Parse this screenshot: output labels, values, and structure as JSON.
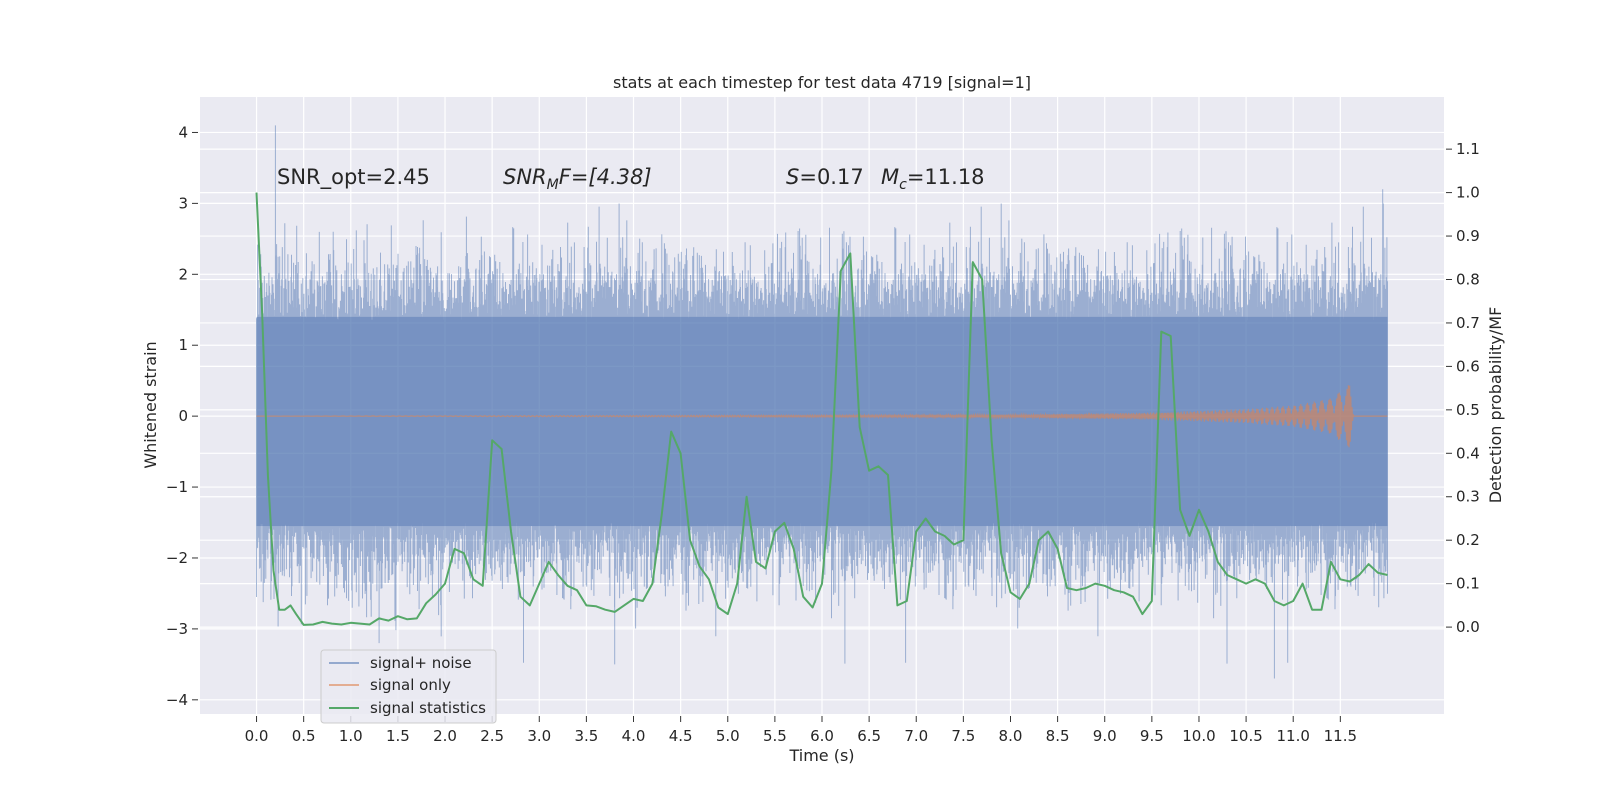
{
  "chart_data": {
    "type": "line",
    "title": "stats at each timestep for test data 4719 [signal=1]",
    "xlabel": "Time (s)",
    "ylabel_left": "Whitened strain",
    "ylabel_right": "Detection probability/MF",
    "xlim": [
      -0.6,
      12.6
    ],
    "ylim_left": [
      -4.2,
      4.5
    ],
    "ylim_right": [
      -0.2,
      1.22
    ],
    "x_ticks": [
      "0.0",
      "0.5",
      "1.0",
      "1.5",
      "2.0",
      "2.5",
      "3.0",
      "3.5",
      "4.0",
      "4.5",
      "5.0",
      "5.5",
      "6.0",
      "6.5",
      "7.0",
      "7.5",
      "8.0",
      "8.5",
      "9.0",
      "9.5",
      "10.0",
      "10.5",
      "11.0",
      "11.5"
    ],
    "y_ticks_left": [
      "4",
      "3",
      "2",
      "1",
      "0",
      "−1",
      "−2",
      "−3",
      "−4"
    ],
    "y_ticks_right": [
      "1.1",
      "1.0",
      "0.9",
      "0.8",
      "0.7",
      "0.6",
      "0.5",
      "0.4",
      "0.3",
      "0.2",
      "0.1",
      "0.0"
    ],
    "grid": true,
    "legend_position": "lower-left",
    "legend": [
      "signal+ noise",
      "signal only",
      "signal statistics"
    ],
    "annotations": {
      "snr_opt": "SNR_opt=2.45",
      "snr_mf_main": "SNR",
      "snr_mf_sub": "M",
      "snr_mf_rest": "F=[4.38]",
      "s_var": "S",
      "s_val": "=0.17",
      "mc_var": "M",
      "mc_sub": "c",
      "mc_val": "=11.18"
    },
    "colors": {
      "noise": "#4c72b0",
      "signal": "#dd8452",
      "stats": "#55a868",
      "background": "#eaeaf2",
      "grid": "#ffffff"
    },
    "series": [
      {
        "name": "signal+ noise",
        "axis": "left",
        "description_only": "dense whitened noise trace spanning 0.0 to 12.0 s",
        "x_range": [
          0.0,
          12.0
        ],
        "sample_points": [
          [
            0.0,
            1.1
          ],
          [
            0.2,
            4.1
          ],
          [
            1.3,
            -3.2
          ],
          [
            3.8,
            -3.5
          ],
          [
            10.8,
            -3.7
          ],
          [
            11.95,
            3.2
          ]
        ]
      },
      {
        "name": "signal only",
        "axis": "left",
        "x_range": [
          0.0,
          11.65
        ],
        "envelope": [
          [
            0.0,
            0.0
          ],
          [
            8.0,
            0.02
          ],
          [
            9.5,
            0.05
          ],
          [
            10.5,
            0.1
          ],
          [
            11.0,
            0.15
          ],
          [
            11.4,
            0.25
          ],
          [
            11.6,
            0.45
          ],
          [
            11.65,
            0.0
          ]
        ]
      },
      {
        "name": "signal statistics",
        "axis": "right",
        "x": [
          0.0,
          0.06,
          0.12,
          0.18,
          0.24,
          0.3,
          0.36,
          0.42,
          0.5,
          0.6,
          0.7,
          0.8,
          0.9,
          1.0,
          1.1,
          1.2,
          1.3,
          1.4,
          1.5,
          1.6,
          1.7,
          1.8,
          1.9,
          2.0,
          2.1,
          2.2,
          2.3,
          2.4,
          2.5,
          2.6,
          2.7,
          2.8,
          2.9,
          3.0,
          3.1,
          3.2,
          3.3,
          3.4,
          3.5,
          3.6,
          3.7,
          3.8,
          3.9,
          4.0,
          4.1,
          4.2,
          4.3,
          4.4,
          4.5,
          4.6,
          4.7,
          4.8,
          4.9,
          5.0,
          5.1,
          5.2,
          5.3,
          5.4,
          5.5,
          5.6,
          5.7,
          5.8,
          5.9,
          6.0,
          6.1,
          6.2,
          6.3,
          6.4,
          6.5,
          6.6,
          6.7,
          6.8,
          6.9,
          7.0,
          7.1,
          7.2,
          7.3,
          7.4,
          7.5,
          7.6,
          7.7,
          7.8,
          7.9,
          8.0,
          8.1,
          8.2,
          8.3,
          8.4,
          8.5,
          8.6,
          8.7,
          8.8,
          8.9,
          9.0,
          9.1,
          9.2,
          9.3,
          9.4,
          9.5,
          9.6,
          9.7,
          9.8,
          9.9,
          10.0,
          10.1,
          10.2,
          10.3,
          10.4,
          10.5,
          10.6,
          10.7,
          10.8,
          10.9,
          11.0,
          11.1,
          11.2,
          11.3,
          11.4,
          11.5,
          11.6,
          11.7,
          11.8,
          11.9,
          12.0
        ],
        "values": [
          1.0,
          0.72,
          0.35,
          0.13,
          0.04,
          0.04,
          0.05,
          0.03,
          0.005,
          0.006,
          0.012,
          0.008,
          0.006,
          0.01,
          0.008,
          0.006,
          0.02,
          0.015,
          0.025,
          0.018,
          0.02,
          0.055,
          0.075,
          0.1,
          0.18,
          0.17,
          0.11,
          0.095,
          0.43,
          0.41,
          0.22,
          0.07,
          0.05,
          0.1,
          0.15,
          0.12,
          0.095,
          0.085,
          0.05,
          0.048,
          0.04,
          0.035,
          0.05,
          0.065,
          0.06,
          0.1,
          0.26,
          0.45,
          0.4,
          0.2,
          0.14,
          0.11,
          0.045,
          0.03,
          0.1,
          0.3,
          0.15,
          0.135,
          0.22,
          0.24,
          0.18,
          0.07,
          0.045,
          0.1,
          0.36,
          0.82,
          0.86,
          0.46,
          0.36,
          0.37,
          0.35,
          0.05,
          0.06,
          0.22,
          0.25,
          0.22,
          0.21,
          0.19,
          0.2,
          0.84,
          0.8,
          0.43,
          0.17,
          0.08,
          0.065,
          0.1,
          0.2,
          0.22,
          0.18,
          0.09,
          0.085,
          0.09,
          0.1,
          0.095,
          0.085,
          0.08,
          0.07,
          0.03,
          0.06,
          0.68,
          0.67,
          0.27,
          0.21,
          0.27,
          0.22,
          0.15,
          0.12,
          0.11,
          0.1,
          0.11,
          0.1,
          0.06,
          0.05,
          0.06,
          0.1,
          0.04,
          0.04,
          0.15,
          0.11,
          0.105,
          0.12,
          0.145,
          0.125,
          0.12
        ]
      }
    ]
  }
}
